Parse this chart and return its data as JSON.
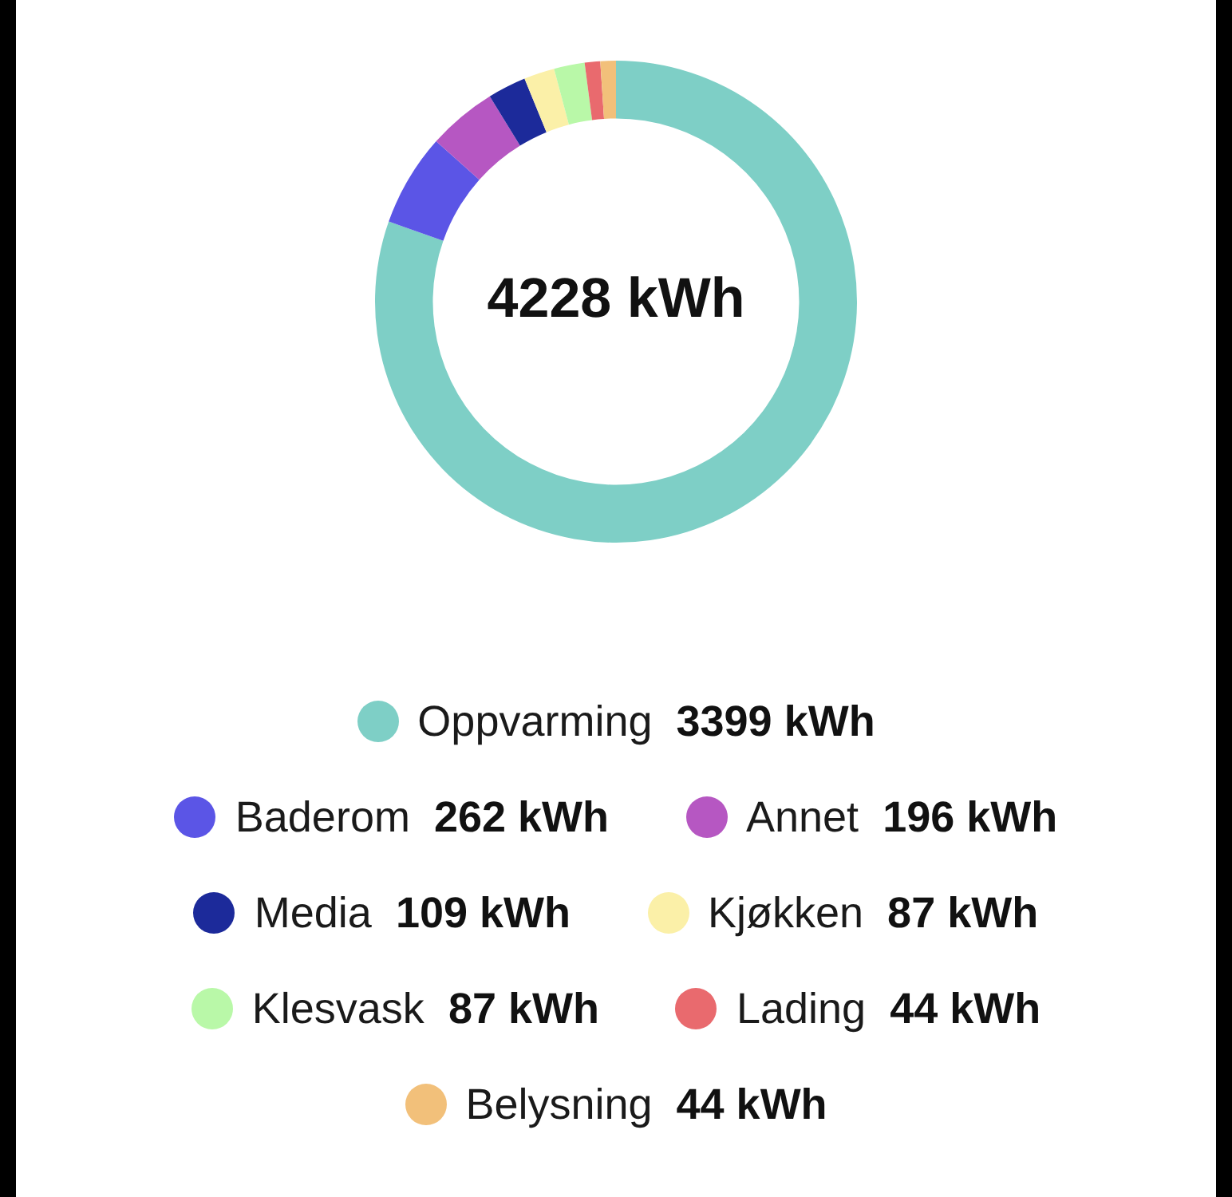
{
  "chart_data": {
    "type": "donut",
    "title": "4228 kWh",
    "categories": [
      "Oppvarming",
      "Baderom",
      "Annet",
      "Media",
      "Kjøkken",
      "Klesvask",
      "Lading",
      "Belysning"
    ],
    "values": [
      3399,
      262,
      196,
      109,
      87,
      87,
      44,
      44
    ],
    "colors": [
      "#7ecfc6",
      "#5b55e6",
      "#b657c2",
      "#1c2a9a",
      "#fbf0a8",
      "#b9f8a8",
      "#e96a6e",
      "#f2c07a"
    ],
    "value_labels": [
      "3399 kWh",
      "262 kWh",
      "196 kWh",
      "109 kWh",
      "87 kWh",
      "87 kWh",
      "44 kWh",
      "44 kWh"
    ],
    "legend": "bottom"
  }
}
